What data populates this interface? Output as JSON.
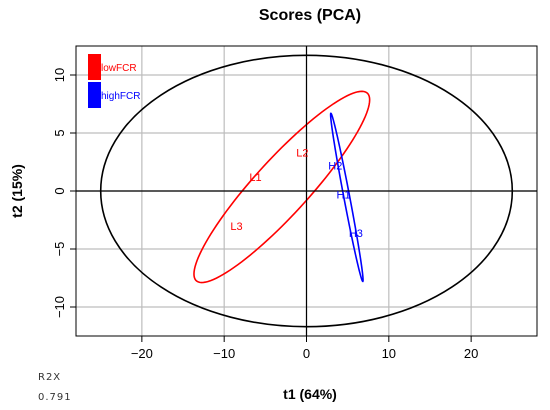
{
  "chart_data": {
    "type": "scatter",
    "title": "Scores (PCA)",
    "xlabel": "t1 (64%)",
    "ylabel": "t2 (15%)",
    "xlim": [
      -28,
      28
    ],
    "ylim": [
      -12.5,
      12.5
    ],
    "xticks": [
      -20,
      -10,
      0,
      10,
      20
    ],
    "yticks": [
      -10,
      -5,
      0,
      5,
      10
    ],
    "grid": true,
    "legend_position": "top-left",
    "series": [
      {
        "name": "lowFCR",
        "color": "#ff0000",
        "points": [
          {
            "label": "L1",
            "x": -6.2,
            "y": 1.2
          },
          {
            "label": "L2",
            "x": -0.5,
            "y": 3.3
          },
          {
            "label": "L3",
            "x": -8.5,
            "y": -3.0
          }
        ],
        "ellipse": {
          "cx": -3.0,
          "cy": 0.35,
          "rx": 13.2,
          "ry": 2.75,
          "angle_deg": 37
        }
      },
      {
        "name": "highFCR",
        "color": "#0000ff",
        "points": [
          {
            "label": "H2",
            "x": 3.5,
            "y": 2.2
          },
          {
            "label": "H1",
            "x": 4.5,
            "y": -0.3
          },
          {
            "label": "H3",
            "x": 6.0,
            "y": -3.6
          }
        ],
        "ellipse": {
          "cx": 4.9,
          "cy": -0.55,
          "rx": 7.5,
          "ry": 0.35,
          "angle_deg": -75
        }
      }
    ],
    "confidence_ellipse": {
      "cx": 0,
      "cy": 0,
      "rx": 25,
      "ry": 11.7
    }
  },
  "stats": {
    "label": "R2X",
    "value": "0.791"
  }
}
